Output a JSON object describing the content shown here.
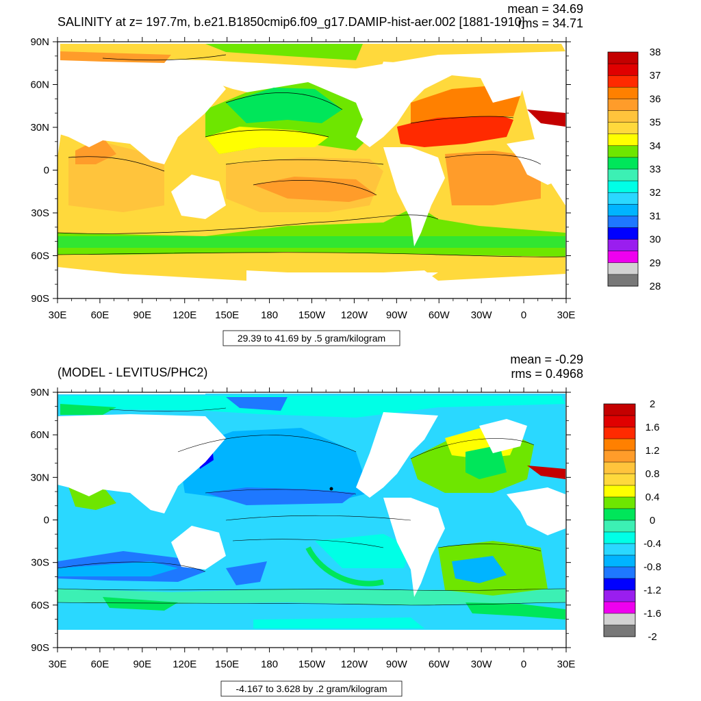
{
  "panels": [
    {
      "title": "SALINITY at z= 197.7m, b.e21.B1850cmip6.f09_g17.DAMIP-hist-aer.002 [1881-1910]",
      "mean_text": "mean = 34.69",
      "rms_text": "rms = 34.71",
      "range_text": "29.39 to 41.69 by .5 gram/kilogram",
      "lat_ticks": [
        "90N",
        "60N",
        "30N",
        "0",
        "30S",
        "60S",
        "90S"
      ],
      "lon_ticks": [
        "30E",
        "60E",
        "90E",
        "120E",
        "150E",
        "180",
        "150W",
        "120W",
        "90W",
        "60W",
        "30W",
        "0",
        "30E"
      ],
      "colorbar_labels": [
        "38",
        "37",
        "36",
        "35",
        "34",
        "33",
        "32",
        "31",
        "30",
        "29",
        "28"
      ],
      "colorbar_colors": [
        "#c40000",
        "#e00000",
        "#ff2a00",
        "#ff8000",
        "#ff9c2a",
        "#ffc43c",
        "#ffd93c",
        "#ffff00",
        "#6ee600",
        "#00e65a",
        "#3cf0b4",
        "#00ffe6",
        "#2ad8ff",
        "#00b4ff",
        "#1e78ff",
        "#0000ff",
        "#9a1eef",
        "#ef00ef",
        "#d2d2d2",
        "#787878"
      ]
    },
    {
      "title": "(MODEL - LEVITUS/PHC2)",
      "mean_text": "mean = -0.29",
      "rms_text": "rms = 0.4968",
      "range_text": "-4.167 to 3.628 by .2 gram/kilogram",
      "lat_ticks": [
        "90N",
        "60N",
        "30N",
        "0",
        "30S",
        "60S",
        "90S"
      ],
      "lon_ticks": [
        "30E",
        "60E",
        "90E",
        "120E",
        "150E",
        "180",
        "150W",
        "120W",
        "90W",
        "60W",
        "30W",
        "0",
        "30E"
      ],
      "colorbar_labels": [
        "2",
        "1.6",
        "1.2",
        "0.8",
        "0.4",
        "0",
        "-0.4",
        "-0.8",
        "-1.2",
        "-1.6",
        "-2"
      ],
      "colorbar_colors": [
        "#c40000",
        "#e00000",
        "#ff2a00",
        "#ff8000",
        "#ff9c2a",
        "#ffc43c",
        "#ffd93c",
        "#ffff00",
        "#6ee600",
        "#00e65a",
        "#3cf0b4",
        "#00ffe6",
        "#2ad8ff",
        "#00b4ff",
        "#1e78ff",
        "#0000ff",
        "#9a1eef",
        "#ef00ef",
        "#d2d2d2",
        "#787878"
      ]
    }
  ],
  "chart_data": [
    {
      "type": "heatmap",
      "title": "SALINITY at z= 197.7m, b.e21.B1850cmip6.f09_g17.DAMIP-hist-aer.002 [1881-1910]",
      "field_range": [
        29.39,
        41.69
      ],
      "contour_interval": 0.5,
      "units": "gram/kilogram",
      "mean": 34.69,
      "rms": 34.71,
      "colorbar_range": [
        28,
        38
      ],
      "grid": false,
      "legend_placement": "right"
    },
    {
      "type": "heatmap",
      "title": "(MODEL - LEVITUS/PHC2)",
      "field_range": [
        -4.167,
        3.628
      ],
      "contour_interval": 0.2,
      "units": "gram/kilogram",
      "mean": -0.29,
      "rms": 0.4968,
      "colorbar_range": [
        -2,
        2
      ],
      "grid": false,
      "legend_placement": "right"
    }
  ]
}
